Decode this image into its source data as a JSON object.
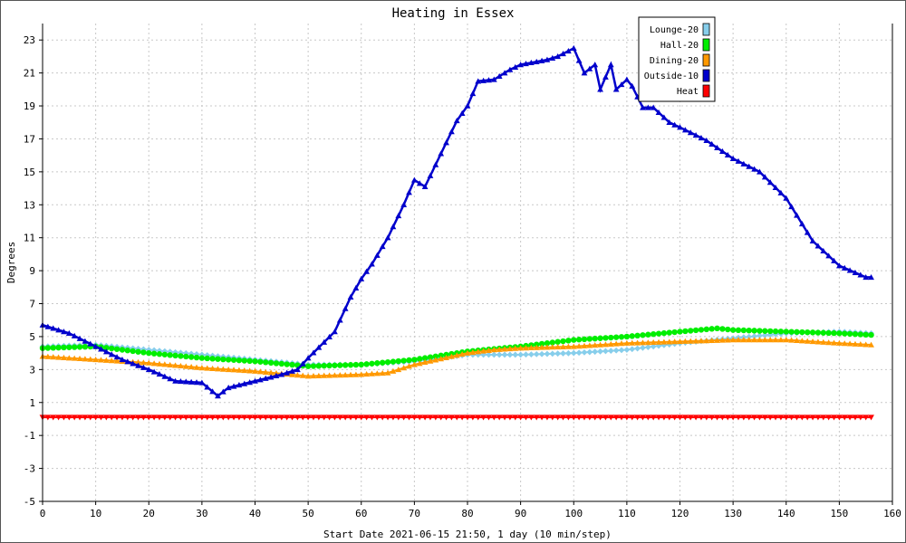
{
  "chart_data": {
    "type": "line",
    "title": "Heating in Essex",
    "xlabel": "Start Date 2021-06-15 21:50, 1 day (10 min/step)",
    "ylabel": "Degrees",
    "xlim": [
      0,
      160
    ],
    "ylim": [
      -5,
      24
    ],
    "x_ticks": [
      0,
      10,
      20,
      30,
      40,
      50,
      60,
      70,
      80,
      90,
      100,
      110,
      120,
      130,
      140,
      150,
      160
    ],
    "y_ticks": [
      -5,
      -3,
      -1,
      1,
      3,
      5,
      7,
      9,
      11,
      13,
      15,
      17,
      19,
      21,
      23
    ],
    "grid": true,
    "legend_position": "top-right",
    "series": [
      {
        "name": "Lounge-20",
        "color": "#87ceeb",
        "marker": "diamond",
        "keyframes": [
          [
            0,
            4.4
          ],
          [
            10,
            4.5
          ],
          [
            20,
            4.2
          ],
          [
            30,
            3.9
          ],
          [
            40,
            3.6
          ],
          [
            50,
            3.3
          ],
          [
            60,
            3.3
          ],
          [
            70,
            3.5
          ],
          [
            80,
            3.9
          ],
          [
            90,
            3.9
          ],
          [
            100,
            4.0
          ],
          [
            110,
            4.2
          ],
          [
            120,
            4.6
          ],
          [
            130,
            4.9
          ],
          [
            140,
            5.2
          ],
          [
            150,
            5.3
          ],
          [
            156,
            5.2
          ]
        ]
      },
      {
        "name": "Hall-20",
        "color": "#00ee00",
        "marker": "circle",
        "keyframes": [
          [
            0,
            4.3
          ],
          [
            10,
            4.4
          ],
          [
            20,
            4.0
          ],
          [
            30,
            3.7
          ],
          [
            40,
            3.5
          ],
          [
            50,
            3.2
          ],
          [
            60,
            3.3
          ],
          [
            70,
            3.6
          ],
          [
            80,
            4.1
          ],
          [
            90,
            4.4
          ],
          [
            100,
            4.8
          ],
          [
            110,
            5.0
          ],
          [
            120,
            5.3
          ],
          [
            127,
            5.5
          ],
          [
            130,
            5.4
          ],
          [
            140,
            5.3
          ],
          [
            150,
            5.2
          ],
          [
            156,
            5.1
          ]
        ]
      },
      {
        "name": "Dining-20",
        "color": "#ff9900",
        "marker": "triangle-up",
        "keyframes": [
          [
            0,
            3.8
          ],
          [
            10,
            3.6
          ],
          [
            20,
            3.4
          ],
          [
            30,
            3.1
          ],
          [
            40,
            2.9
          ],
          [
            50,
            2.6
          ],
          [
            60,
            2.7
          ],
          [
            65,
            2.8
          ],
          [
            70,
            3.3
          ],
          [
            80,
            4.0
          ],
          [
            85,
            4.2
          ],
          [
            90,
            4.3
          ],
          [
            100,
            4.4
          ],
          [
            110,
            4.6
          ],
          [
            120,
            4.7
          ],
          [
            130,
            4.8
          ],
          [
            140,
            4.8
          ],
          [
            150,
            4.6
          ],
          [
            156,
            4.5
          ]
        ]
      },
      {
        "name": "Outside-10",
        "color": "#0000cc",
        "marker": "triangle-up",
        "keyframes": [
          [
            0,
            5.7
          ],
          [
            5,
            5.2
          ],
          [
            10,
            4.4
          ],
          [
            15,
            3.6
          ],
          [
            20,
            3.0
          ],
          [
            25,
            2.3
          ],
          [
            30,
            2.2
          ],
          [
            33,
            1.4
          ],
          [
            35,
            1.9
          ],
          [
            40,
            2.3
          ],
          [
            45,
            2.7
          ],
          [
            48,
            3.0
          ],
          [
            50,
            3.7
          ],
          [
            55,
            5.3
          ],
          [
            58,
            7.4
          ],
          [
            60,
            8.5
          ],
          [
            62,
            9.4
          ],
          [
            65,
            11.0
          ],
          [
            68,
            13.0
          ],
          [
            70,
            14.5
          ],
          [
            72,
            14.1
          ],
          [
            75,
            16.1
          ],
          [
            78,
            18.1
          ],
          [
            80,
            19.0
          ],
          [
            82,
            20.5
          ],
          [
            85,
            20.6
          ],
          [
            88,
            21.2
          ],
          [
            90,
            21.5
          ],
          [
            95,
            21.8
          ],
          [
            97,
            22.0
          ],
          [
            100,
            22.5
          ],
          [
            102,
            21.0
          ],
          [
            104,
            21.5
          ],
          [
            105,
            20.0
          ],
          [
            107,
            21.5
          ],
          [
            108,
            20.0
          ],
          [
            110,
            20.6
          ],
          [
            111,
            20.2
          ],
          [
            113,
            18.9
          ],
          [
            115,
            18.9
          ],
          [
            118,
            18.0
          ],
          [
            120,
            17.7
          ],
          [
            125,
            16.9
          ],
          [
            130,
            15.8
          ],
          [
            135,
            15.0
          ],
          [
            140,
            13.4
          ],
          [
            145,
            10.8
          ],
          [
            150,
            9.3
          ],
          [
            155,
            8.6
          ],
          [
            156,
            8.6
          ]
        ]
      },
      {
        "name": "Heat",
        "color": "#ff0000",
        "marker": "triangle-down",
        "keyframes": [
          [
            0,
            0.1
          ],
          [
            156,
            0.1
          ]
        ]
      }
    ]
  }
}
